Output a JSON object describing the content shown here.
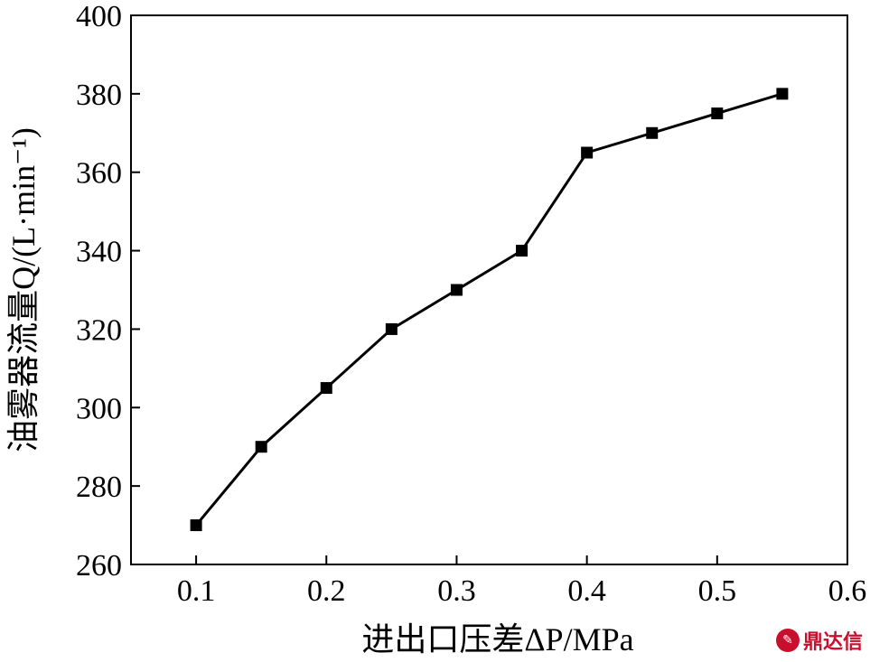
{
  "chart_data": {
    "type": "line",
    "x": [
      0.1,
      0.15,
      0.2,
      0.25,
      0.3,
      0.35,
      0.4,
      0.45,
      0.5,
      0.55
    ],
    "series": [
      {
        "values": [
          270,
          290,
          305,
          320,
          330,
          340,
          365,
          370,
          375,
          380
        ]
      }
    ],
    "xlabel": "进出口压差ΔP/MPa",
    "ylabel": "油雾器流量Q/(L·min⁻¹)",
    "xlim": [
      0.05,
      0.6
    ],
    "ylim": [
      260,
      400
    ],
    "xticks": [
      0.1,
      0.2,
      0.3,
      0.4,
      0.5,
      0.6
    ],
    "yticks": [
      260,
      280,
      300,
      320,
      340,
      360,
      380,
      400
    ],
    "marker": "square",
    "grid": false,
    "colors": {
      "line": "#000000",
      "marker": "#000000"
    }
  },
  "watermark": {
    "text": "鼎达信",
    "icon": "logo-icon"
  }
}
